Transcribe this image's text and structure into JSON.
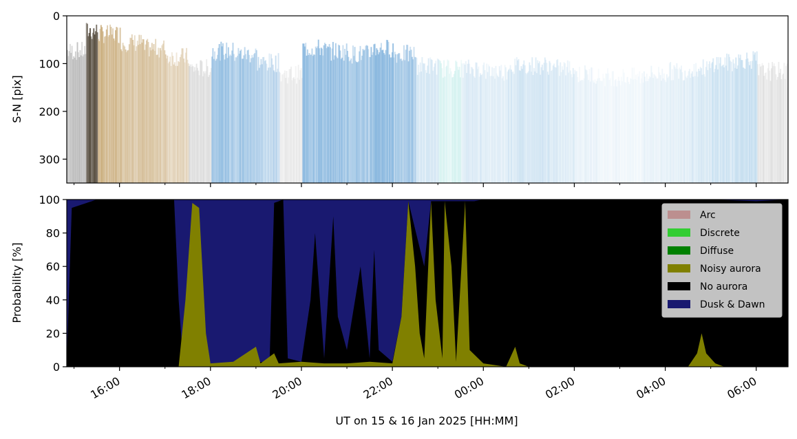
{
  "chart_data": [
    {
      "type": "heatmap",
      "panel": "keogram",
      "ylabel": "S-N [pix]",
      "ylim": [
        350,
        0
      ],
      "yticks": [
        0,
        100,
        200,
        300
      ],
      "ytick_labels": [
        "0",
        "100",
        "200",
        "300"
      ],
      "x_range": [
        "15:00",
        "06:40"
      ],
      "brightness_profile": [
        {
          "t": 15.0,
          "tone": "grey",
          "density": 0.55
        },
        {
          "t": 15.25,
          "tone": "dark-brown",
          "density": 0.9
        },
        {
          "t": 15.5,
          "tone": "tan",
          "density": 0.85
        },
        {
          "t": 16.0,
          "tone": "tan",
          "density": 0.7
        },
        {
          "t": 16.5,
          "tone": "tan",
          "density": 0.6
        },
        {
          "t": 17.0,
          "tone": "tan",
          "density": 0.45
        },
        {
          "t": 17.5,
          "tone": "grey",
          "density": 0.25
        },
        {
          "t": 18.0,
          "tone": "blue",
          "density": 0.55
        },
        {
          "t": 18.5,
          "tone": "blue",
          "density": 0.5
        },
        {
          "t": 19.0,
          "tone": "blue",
          "density": 0.35
        },
        {
          "t": 19.5,
          "tone": "grey",
          "density": 0.15
        },
        {
          "t": 20.0,
          "tone": "blue",
          "density": 0.6
        },
        {
          "t": 20.5,
          "tone": "blue",
          "density": 0.55
        },
        {
          "t": 21.0,
          "tone": "blue",
          "density": 0.5
        },
        {
          "t": 21.5,
          "tone": "blue",
          "density": 0.6
        },
        {
          "t": 22.0,
          "tone": "blue",
          "density": 0.5
        },
        {
          "t": 22.5,
          "tone": "light-blue",
          "density": 0.3
        },
        {
          "t": 23.0,
          "tone": "cyan",
          "density": 0.25
        },
        {
          "t": 23.5,
          "tone": "light-blue",
          "density": 0.25
        },
        {
          "t": 24.0,
          "tone": "light-blue",
          "density": 0.2
        },
        {
          "t": 24.5,
          "tone": "light-blue",
          "density": 0.3
        },
        {
          "t": 25.0,
          "tone": "light-blue",
          "density": 0.3
        },
        {
          "t": 25.5,
          "tone": "light-blue",
          "density": 0.25
        },
        {
          "t": 26.0,
          "tone": "light-blue",
          "density": 0.15
        },
        {
          "t": 26.5,
          "tone": "light-blue",
          "density": 0.1
        },
        {
          "t": 27.0,
          "tone": "light-blue",
          "density": 0.1
        },
        {
          "t": 27.5,
          "tone": "light-blue",
          "density": 0.15
        },
        {
          "t": 28.0,
          "tone": "light-blue",
          "density": 0.2
        },
        {
          "t": 28.5,
          "tone": "light-blue",
          "density": 0.25
        },
        {
          "t": 29.0,
          "tone": "light-blue",
          "density": 0.35
        },
        {
          "t": 29.5,
          "tone": "light-blue",
          "density": 0.4
        },
        {
          "t": 30.0,
          "tone": "grey",
          "density": 0.2
        },
        {
          "t": 30.67,
          "tone": "grey",
          "density": 0.05
        }
      ]
    },
    {
      "type": "area",
      "panel": "probability",
      "stacked": true,
      "ylabel": "Probability [%]",
      "xlabel": "UT on 15 & 16 Jan 2025 [HH:MM]",
      "ylim": [
        0,
        100
      ],
      "yticks": [
        0,
        20,
        40,
        60,
        80,
        100
      ],
      "ytick_labels": [
        "0",
        "20",
        "40",
        "60",
        "80",
        "100"
      ],
      "x_range": [
        "14:50",
        "06:42"
      ],
      "xticks": [
        16,
        18,
        20,
        22,
        24,
        26,
        28,
        30
      ],
      "xtick_labels": [
        "16:00",
        "18:00",
        "20:00",
        "22:00",
        "00:00",
        "02:00",
        "04:00",
        "06:00"
      ],
      "legend_placement": "right",
      "legend": [
        {
          "name": "Arc",
          "color": "#bc8f8f"
        },
        {
          "name": "Discrete",
          "color": "#32cd32"
        },
        {
          "name": "Diffuse",
          "color": "#008000"
        },
        {
          "name": "Noisy aurora",
          "color": "#808000"
        },
        {
          "name": "No aurora",
          "color": "#000000"
        },
        {
          "name": "Dusk & Dawn",
          "color": "#191970"
        }
      ],
      "series": [
        {
          "name": "Noisy aurora",
          "color": "#808000",
          "points": [
            [
              14.84,
              0
            ],
            [
              17.3,
              0
            ],
            [
              17.45,
              40
            ],
            [
              17.6,
              98
            ],
            [
              17.75,
              95
            ],
            [
              17.9,
              20
            ],
            [
              18.0,
              2
            ],
            [
              18.5,
              3
            ],
            [
              19.0,
              12
            ],
            [
              19.1,
              2
            ],
            [
              19.4,
              8
            ],
            [
              19.5,
              2
            ],
            [
              20.0,
              3
            ],
            [
              20.5,
              2
            ],
            [
              21.0,
              2
            ],
            [
              21.5,
              3
            ],
            [
              22.0,
              2
            ],
            [
              22.2,
              30
            ],
            [
              22.35,
              99
            ],
            [
              22.5,
              60
            ],
            [
              22.6,
              20
            ],
            [
              22.7,
              5
            ],
            [
              22.85,
              99
            ],
            [
              22.95,
              40
            ],
            [
              23.1,
              5
            ],
            [
              23.15,
              99
            ],
            [
              23.3,
              60
            ],
            [
              23.4,
              3
            ],
            [
              23.6,
              99
            ],
            [
              23.7,
              10
            ],
            [
              24.0,
              2
            ],
            [
              24.5,
              0
            ],
            [
              24.7,
              12
            ],
            [
              24.8,
              2
            ],
            [
              25.0,
              0
            ],
            [
              28.5,
              0
            ],
            [
              28.7,
              8
            ],
            [
              28.8,
              20
            ],
            [
              28.9,
              8
            ],
            [
              29.1,
              2
            ],
            [
              29.3,
              0
            ],
            [
              30.7,
              0
            ]
          ]
        },
        {
          "name": "No aurora",
          "color": "#000000",
          "points": [
            [
              14.84,
              3
            ],
            [
              14.95,
              95
            ],
            [
              15.5,
              100
            ],
            [
              16.5,
              100
            ],
            [
              17.2,
              100
            ],
            [
              17.3,
              40
            ],
            [
              17.4,
              2
            ],
            [
              18.0,
              2
            ],
            [
              19.3,
              3
            ],
            [
              19.4,
              98
            ],
            [
              19.6,
              100
            ],
            [
              19.7,
              5
            ],
            [
              20.0,
              3
            ],
            [
              20.2,
              40
            ],
            [
              20.3,
              80
            ],
            [
              20.5,
              5
            ],
            [
              20.7,
              90
            ],
            [
              20.8,
              30
            ],
            [
              21.0,
              10
            ],
            [
              21.3,
              60
            ],
            [
              21.5,
              5
            ],
            [
              21.6,
              70
            ],
            [
              21.7,
              10
            ],
            [
              22.0,
              3
            ],
            [
              22.2,
              30
            ],
            [
              22.35,
              99
            ],
            [
              22.7,
              60
            ],
            [
              22.85,
              99
            ],
            [
              23.15,
              99
            ],
            [
              23.6,
              99
            ],
            [
              23.8,
              99
            ],
            [
              24.0,
              100
            ],
            [
              24.5,
              100
            ],
            [
              25.0,
              100
            ],
            [
              26.0,
              100
            ],
            [
              27.0,
              100
            ],
            [
              28.0,
              100
            ],
            [
              29.0,
              100
            ],
            [
              30.0,
              99
            ],
            [
              30.7,
              100
            ]
          ]
        },
        {
          "name": "Dusk & Dawn",
          "color": "#191970",
          "points": [
            [
              14.84,
              100
            ],
            [
              16.5,
              100
            ],
            [
              17.2,
              100
            ],
            [
              18.0,
              100
            ],
            [
              20.0,
              100
            ],
            [
              22.0,
              100
            ],
            [
              23.0,
              100
            ],
            [
              24.0,
              100
            ],
            [
              26.0,
              100
            ],
            [
              28.0,
              100
            ],
            [
              30.0,
              100
            ],
            [
              30.7,
              100
            ]
          ]
        }
      ]
    }
  ]
}
